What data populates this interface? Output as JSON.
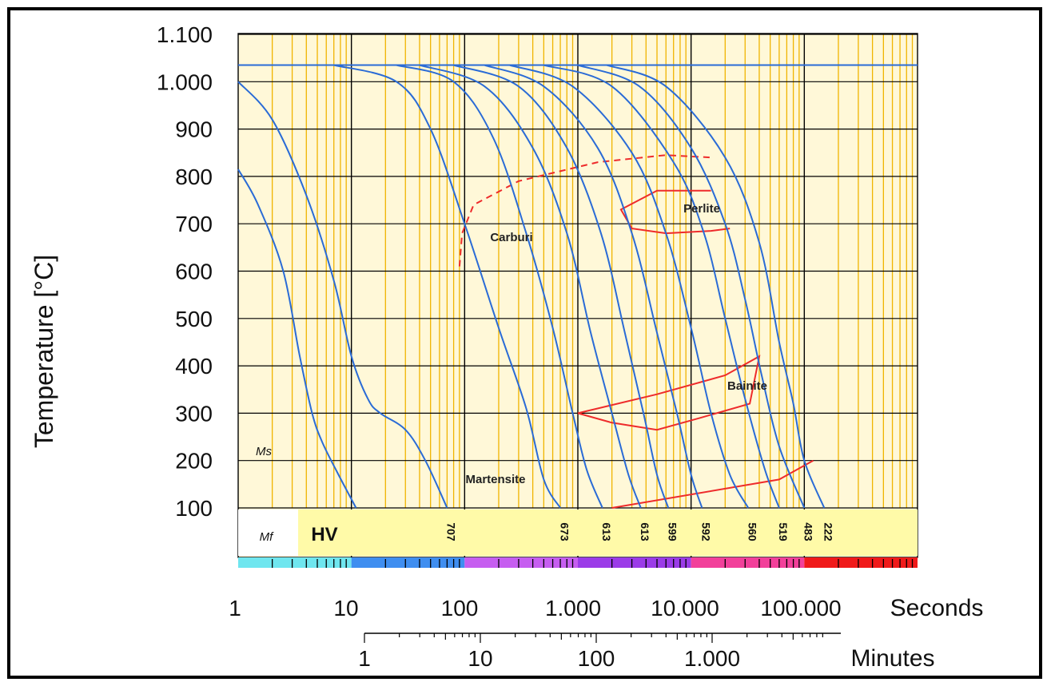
{
  "chart_data": {
    "type": "line",
    "title": "",
    "ylabel": "Temperature [°C]",
    "xlabel": "Seconds",
    "x2label": "Minutes",
    "x_scale": "log",
    "xlim": [
      1,
      1000000
    ],
    "ylim": [
      0,
      1100
    ],
    "y_ticks": [
      {
        "value": 100,
        "label": "100"
      },
      {
        "value": 200,
        "label": "200"
      },
      {
        "value": 300,
        "label": "300"
      },
      {
        "value": 400,
        "label": "400"
      },
      {
        "value": 500,
        "label": "500"
      },
      {
        "value": 600,
        "label": "600"
      },
      {
        "value": 700,
        "label": "700"
      },
      {
        "value": 800,
        "label": "800"
      },
      {
        "value": 900,
        "label": "900"
      },
      {
        "value": 1000,
        "label": "1.000"
      },
      {
        "value": 1100,
        "label": "1.100"
      }
    ],
    "x_ticks": [
      {
        "value": 1,
        "label": "1"
      },
      {
        "value": 10,
        "label": "10"
      },
      {
        "value": 100,
        "label": "100"
      },
      {
        "value": 1000,
        "label": "1.000"
      },
      {
        "value": 10000,
        "label": "10.000"
      },
      {
        "value": 100000,
        "label": "100.000"
      }
    ],
    "minute_ticks": [
      {
        "value": 60,
        "label": "1"
      },
      {
        "value": 600,
        "label": "10"
      },
      {
        "value": 6000,
        "label": "100"
      },
      {
        "value": 60000,
        "label": "1.000"
      }
    ],
    "austenitizing_temperature": 1035,
    "cooling_curves": [
      {
        "points": [
          [
            1,
            815
          ],
          [
            1.5,
            740
          ],
          [
            2.5,
            600
          ],
          [
            3.5,
            420
          ],
          [
            4.5,
            300
          ],
          [
            5.5,
            240
          ],
          [
            7.5,
            175
          ],
          [
            11,
            100
          ]
        ],
        "hardness": ""
      },
      {
        "points": [
          [
            1,
            1000
          ],
          [
            2,
            920
          ],
          [
            4,
            760
          ],
          [
            7,
            580
          ],
          [
            10,
            420
          ],
          [
            14,
            330
          ],
          [
            18,
            300
          ],
          [
            30,
            265
          ],
          [
            45,
            200
          ],
          [
            70,
            100
          ]
        ],
        "hardness": "707"
      },
      {
        "points": [
          [
            7,
            1035
          ],
          [
            25,
            1000
          ],
          [
            50,
            900
          ],
          [
            100,
            700
          ],
          [
            200,
            480
          ],
          [
            350,
            310
          ],
          [
            500,
            160
          ],
          [
            700,
            100
          ]
        ],
        "hardness": "673"
      },
      {
        "points": [
          [
            25,
            1035
          ],
          [
            80,
            1000
          ],
          [
            180,
            880
          ],
          [
            350,
            680
          ],
          [
            600,
            480
          ],
          [
            900,
            300
          ],
          [
            1200,
            180
          ],
          [
            1650,
            100
          ]
        ],
        "hardness": "613"
      },
      {
        "points": [
          [
            40,
            1035
          ],
          [
            150,
            990
          ],
          [
            400,
            860
          ],
          [
            800,
            680
          ],
          [
            1300,
            470
          ],
          [
            2000,
            300
          ],
          [
            2800,
            170
          ],
          [
            3600,
            100
          ]
        ],
        "hardness": "613"
      },
      {
        "points": [
          [
            80,
            1035
          ],
          [
            300,
            990
          ],
          [
            800,
            860
          ],
          [
            1600,
            680
          ],
          [
            2600,
            470
          ],
          [
            3800,
            300
          ],
          [
            5000,
            170
          ],
          [
            6300,
            100
          ]
        ],
        "hardness": "599"
      },
      {
        "points": [
          [
            150,
            1035
          ],
          [
            500,
            990
          ],
          [
            1500,
            860
          ],
          [
            3000,
            680
          ],
          [
            5000,
            470
          ],
          [
            7500,
            300
          ],
          [
            10000,
            170
          ],
          [
            12500,
            100
          ]
        ],
        "hardness": "592"
      },
      {
        "points": [
          [
            250,
            1035
          ],
          [
            900,
            990
          ],
          [
            3000,
            850
          ],
          [
            6000,
            680
          ],
          [
            10000,
            480
          ],
          [
            15000,
            300
          ],
          [
            22000,
            170
          ],
          [
            32000,
            100
          ]
        ],
        "hardness": "560"
      },
      {
        "points": [
          [
            500,
            1035
          ],
          [
            2000,
            990
          ],
          [
            7000,
            830
          ],
          [
            13000,
            680
          ],
          [
            20000,
            500
          ],
          [
            30000,
            330
          ],
          [
            45000,
            180
          ],
          [
            60000,
            100
          ]
        ],
        "hardness": "519"
      },
      {
        "points": [
          [
            1000,
            1035
          ],
          [
            3500,
            990
          ],
          [
            10000,
            860
          ],
          [
            20000,
            700
          ],
          [
            30000,
            540
          ],
          [
            42000,
            380
          ],
          [
            60000,
            230
          ],
          [
            100000,
            100
          ]
        ],
        "hardness": "483"
      },
      {
        "points": [
          [
            1800,
            1035
          ],
          [
            6000,
            990
          ],
          [
            20000,
            840
          ],
          [
            40000,
            660
          ],
          [
            60000,
            450
          ],
          [
            80000,
            320
          ],
          [
            100000,
            200
          ],
          [
            150000,
            100
          ]
        ],
        "hardness": "222"
      }
    ],
    "transformation_zones": [
      {
        "name": "Carburi",
        "style": "dashed",
        "points": [
          [
            90,
            610
          ],
          [
            95,
            680
          ],
          [
            120,
            740
          ],
          [
            300,
            790
          ],
          [
            1500,
            830
          ],
          [
            6000,
            845
          ],
          [
            15000,
            840
          ]
        ]
      },
      {
        "name": "Perlite",
        "style": "solid",
        "points": [
          [
            15000,
            770
          ],
          [
            5000,
            770
          ],
          [
            2400,
            730
          ],
          [
            3000,
            690
          ],
          [
            6000,
            680
          ],
          [
            15000,
            685
          ],
          [
            22000,
            690
          ]
        ]
      },
      {
        "name": "Bainite",
        "style": "solid",
        "points": [
          [
            1000,
            300
          ],
          [
            5000,
            340
          ],
          [
            20000,
            380
          ],
          [
            40000,
            420
          ],
          [
            33000,
            320
          ],
          [
            12000,
            290
          ],
          [
            5000,
            265
          ],
          [
            2000,
            280
          ],
          [
            1000,
            300
          ]
        ]
      },
      {
        "name": "Martensite",
        "style": "solid",
        "points": [
          [
            2000,
            100
          ],
          [
            60000,
            160
          ],
          [
            120000,
            200
          ]
        ]
      }
    ],
    "region_labels": {
      "carburi": "Carburi",
      "perlite": "Perlite",
      "bainite": "Bainite",
      "martensite": "Martensite",
      "ms": "Ms",
      "mf": "Mf",
      "hv": "HV"
    },
    "colors": {
      "curve": "#2a6bd6",
      "transformation": "#ee2b2b",
      "grid_major": "#000000",
      "grid_minor": "#f0b400",
      "plot_background": "#fff8d8",
      "hv_band": "#fffaa8"
    },
    "legend": "none",
    "grid": true
  }
}
